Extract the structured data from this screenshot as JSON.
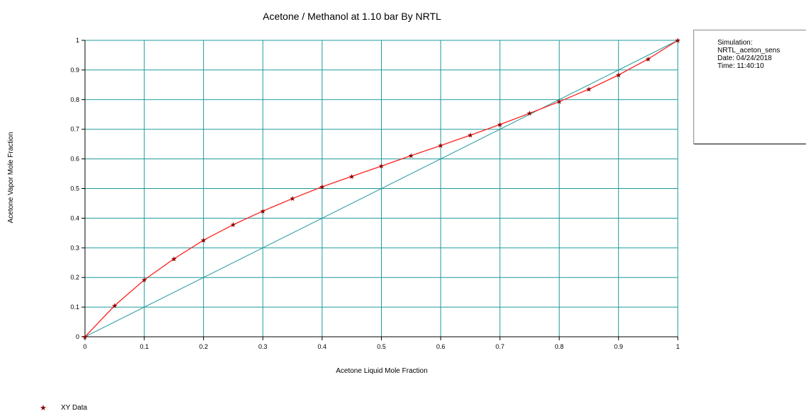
{
  "chart_data": {
    "type": "line",
    "title": "Acetone / Methanol at     1.10 bar By NRTL",
    "xlabel": "Acetone Liquid Mole Fraction",
    "ylabel": "Acetone Vapor Mole Fraction",
    "xlim": [
      0,
      1
    ],
    "ylim": [
      0,
      1
    ],
    "grid": true,
    "x_ticks": [
      "0",
      "0.1",
      "0.2",
      "0.3",
      "0.4",
      "0.5",
      "0.6",
      "0.7",
      "0.8",
      "0.9",
      "1"
    ],
    "y_ticks": [
      "0",
      "0.1",
      "0.2",
      "0.3",
      "0.4",
      "0.5",
      "0.6",
      "0.7",
      "0.8",
      "0.9",
      "1"
    ],
    "series": [
      {
        "name": "XY Data",
        "color": "#ff2020",
        "marker": "star",
        "marker_color": "#8b0000",
        "x": [
          0,
          0.05,
          0.1,
          0.15,
          0.2,
          0.25,
          0.3,
          0.35,
          0.4,
          0.45,
          0.5,
          0.55,
          0.6,
          0.65,
          0.7,
          0.75,
          0.8,
          0.85,
          0.9,
          0.95,
          1
        ],
        "y": [
          0,
          0.105,
          0.192,
          0.263,
          0.326,
          0.378,
          0.424,
          0.466,
          0.506,
          0.541,
          0.576,
          0.611,
          0.645,
          0.68,
          0.716,
          0.754,
          0.793,
          0.835,
          0.883,
          0.937,
          1
        ]
      }
    ],
    "reference_line": {
      "x": [
        0,
        1
      ],
      "y": [
        0,
        1
      ],
      "color": "#1f9a9a"
    },
    "grid_color": "#1f9a9a"
  },
  "info_box": {
    "line1": "Simulation:",
    "line2": "NRTL_aceton_sens",
    "line3": "Date: 04/24/2018",
    "line4": "Time: 11:40:10"
  },
  "legend": {
    "label": "XY Data"
  }
}
